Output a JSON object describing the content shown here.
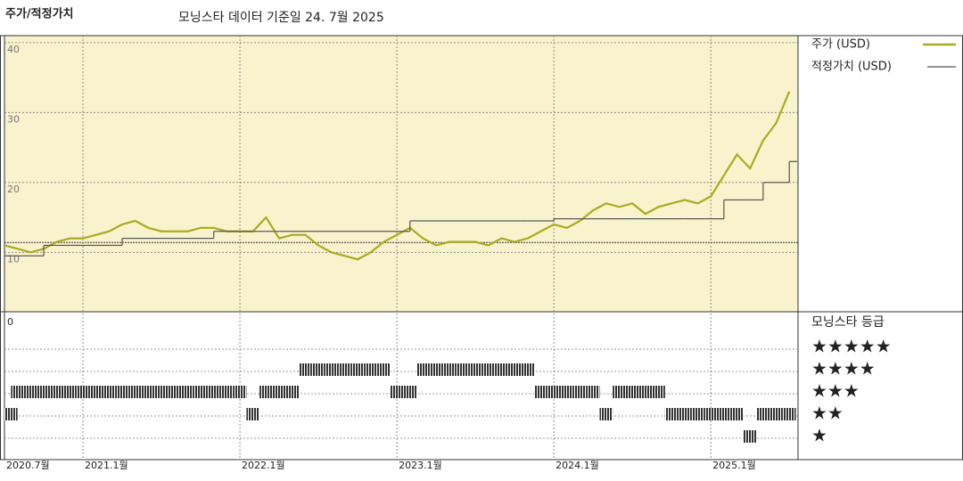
{
  "chart_data": {
    "type": "line",
    "title": "주가/적정가치",
    "subtitle": "모닝스타 데이터 기준일 24. 7월 2025",
    "categories": [
      "2020.7월",
      null,
      null,
      null,
      null,
      null,
      "2021.1월",
      null,
      null,
      null,
      null,
      null,
      null,
      null,
      null,
      null,
      null,
      null,
      "2022.1월",
      null,
      null,
      null,
      null,
      null,
      null,
      null,
      null,
      null,
      null,
      null,
      "2023.1월",
      null,
      null,
      null,
      null,
      null,
      null,
      null,
      null,
      null,
      null,
      null,
      "2024.1월",
      null,
      null,
      null,
      null,
      null,
      null,
      null,
      null,
      null,
      null,
      null,
      "2025.1월",
      null,
      null,
      null,
      null,
      null,
      null
    ],
    "series": [
      {
        "name": "주가 (USD)",
        "color": "#a9ab22",
        "values": [
          11,
          10.5,
          10,
          10.5,
          11.5,
          12,
          12,
          12.5,
          13,
          14,
          14.5,
          13.5,
          13,
          13,
          13,
          13.5,
          13.5,
          13,
          13,
          13,
          15,
          12,
          12.5,
          12.5,
          11,
          10,
          9.5,
          9,
          10,
          11.5,
          12.5,
          13.5,
          12,
          11,
          11.5,
          11.5,
          11.5,
          11,
          12,
          11.5,
          12,
          13,
          14,
          13.5,
          14.5,
          16,
          17,
          16.5,
          17,
          15.5,
          16.5,
          17,
          17.5,
          17,
          18,
          21,
          24,
          22,
          26,
          28.5,
          33
        ]
      },
      {
        "name": "적정가치 (USD)",
        "color": "#555555",
        "step": true,
        "values": [
          9.5,
          9.5,
          9.5,
          11,
          11,
          11,
          11,
          11,
          11,
          12,
          12,
          12,
          12,
          12,
          12,
          12,
          13,
          13,
          13,
          13,
          13,
          13,
          13,
          13,
          13,
          13,
          13,
          13,
          13,
          13,
          13,
          14.5,
          14.5,
          14.5,
          14.5,
          14.5,
          14.5,
          14.5,
          14.5,
          14.5,
          14.5,
          14.5,
          14.8,
          14.8,
          14.8,
          14.8,
          14.8,
          14.8,
          14.8,
          14.8,
          14.8,
          14.8,
          14.8,
          14.8,
          14.8,
          17.5,
          17.5,
          17.5,
          20,
          20,
          23
        ]
      }
    ],
    "reference_line": 11.4,
    "ylim": [
      1.5,
      41
    ],
    "yticks": [
      10,
      20,
      30,
      40
    ],
    "grid": true,
    "ratings": {
      "name": "모닝스타 등급",
      "axis_label": "0",
      "color": "#333333",
      "labels": [
        "★",
        "★★",
        "★★★",
        "★★★★",
        "★★★★★"
      ],
      "values": [
        2,
        3,
        3,
        3,
        3,
        3,
        3,
        3,
        3,
        3,
        3,
        3,
        3,
        3,
        3,
        3,
        3,
        3,
        3,
        2,
        3,
        3,
        3,
        4,
        4,
        4,
        4,
        4,
        4,
        4,
        3,
        3,
        4,
        4,
        4,
        4,
        4,
        4,
        4,
        4,
        4,
        3,
        3,
        3,
        3,
        3,
        2,
        3,
        3,
        3,
        3,
        2,
        2,
        2,
        2,
        2,
        2,
        1,
        2,
        2,
        2
      ]
    }
  }
}
